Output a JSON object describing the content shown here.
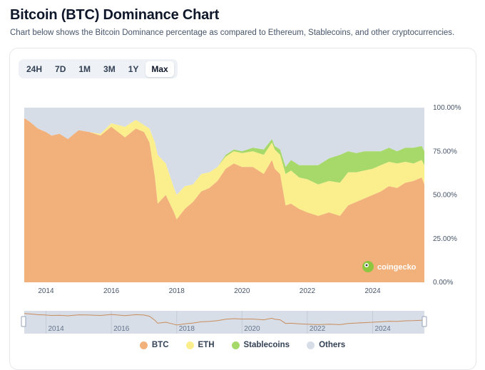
{
  "header": {
    "title": "Bitcoin (BTC) Dominance Chart",
    "subtitle": "Chart below shows the Bitcoin Dominance percentage as compared to Ethereum, Stablecoins, and other cryptocurrencies."
  },
  "range_tabs": [
    "24H",
    "7D",
    "1M",
    "3M",
    "1Y",
    "Max"
  ],
  "active_range": "Max",
  "watermark": "coingecko",
  "colors": {
    "btc": "#f2b07a",
    "eth": "#fbee8c",
    "stablecoins": "#a6d86a",
    "others": "#d7dde7",
    "navigator_line": "#c98c5b",
    "navigator_bg": "#d8dee8"
  },
  "chart_data": {
    "type": "area",
    "stacking": "percent",
    "x": [
      "2013-05",
      "2013-07",
      "2013-10",
      "2014-01",
      "2014-03",
      "2014-06",
      "2014-09",
      "2015-01",
      "2015-05",
      "2015-09",
      "2016-01",
      "2016-06",
      "2016-10",
      "2017-01",
      "2017-03",
      "2017-05",
      "2017-06",
      "2017-09",
      "2017-12",
      "2018-01",
      "2018-04",
      "2018-07",
      "2018-10",
      "2019-01",
      "2019-04",
      "2019-07",
      "2019-10",
      "2020-01",
      "2020-05",
      "2020-09",
      "2020-12",
      "2021-01",
      "2021-03",
      "2021-05",
      "2021-07",
      "2021-10",
      "2022-01",
      "2022-05",
      "2022-09",
      "2023-01",
      "2023-04",
      "2023-07",
      "2023-10",
      "2024-01",
      "2024-04",
      "2024-07",
      "2024-10",
      "2025-01",
      "2025-04",
      "2025-07",
      "2025-08"
    ],
    "series": [
      {
        "name": "BTC",
        "values": [
          94,
          92,
          88,
          86,
          84,
          85,
          82,
          87,
          86,
          84,
          89,
          83,
          88,
          86,
          80,
          60,
          45,
          50,
          40,
          36,
          42,
          46,
          52,
          54,
          58,
          65,
          68,
          66,
          66,
          62,
          70,
          65,
          62,
          44,
          45,
          42,
          40,
          38,
          40,
          38,
          44,
          46,
          48,
          50,
          52,
          55,
          54,
          57,
          58,
          60,
          56
        ]
      },
      {
        "name": "ETH",
        "values": [
          0,
          0,
          0,
          0,
          0,
          0,
          0,
          0,
          0,
          1,
          2,
          6,
          5,
          4,
          8,
          20,
          28,
          18,
          14,
          14,
          13,
          10,
          10,
          9,
          8,
          7,
          7,
          8,
          9,
          11,
          10,
          11,
          11,
          18,
          19,
          18,
          19,
          18,
          18,
          19,
          19,
          17,
          16,
          15,
          15,
          14,
          14,
          12,
          10,
          10,
          11
        ]
      },
      {
        "name": "Stablecoins",
        "values": [
          0,
          0,
          0,
          0,
          0,
          0,
          0,
          0,
          0,
          0,
          0,
          0,
          0,
          0,
          0,
          0,
          0,
          0,
          0,
          0,
          0,
          0,
          0,
          0,
          0,
          1,
          1,
          1,
          2,
          3,
          2,
          2,
          3,
          4,
          6,
          7,
          8,
          11,
          13,
          16,
          12,
          11,
          11,
          10,
          8,
          8,
          7,
          8,
          9,
          8,
          8
        ]
      },
      {
        "name": "Others",
        "values": [
          6,
          8,
          12,
          14,
          16,
          15,
          18,
          13,
          14,
          15,
          9,
          11,
          7,
          10,
          12,
          20,
          27,
          32,
          46,
          50,
          45,
          44,
          38,
          37,
          34,
          27,
          24,
          25,
          23,
          24,
          18,
          22,
          24,
          34,
          30,
          33,
          33,
          33,
          29,
          27,
          25,
          26,
          25,
          25,
          25,
          23,
          25,
          23,
          23,
          22,
          25
        ]
      }
    ],
    "ylim": [
      0,
      100
    ],
    "yticks": [
      "0.00%",
      "25.00%",
      "50.00%",
      "75.00%",
      "100.00%"
    ],
    "xticks": [
      "2014",
      "2016",
      "2018",
      "2020",
      "2022",
      "2024"
    ],
    "legend_position": "bottom",
    "grid": false
  }
}
